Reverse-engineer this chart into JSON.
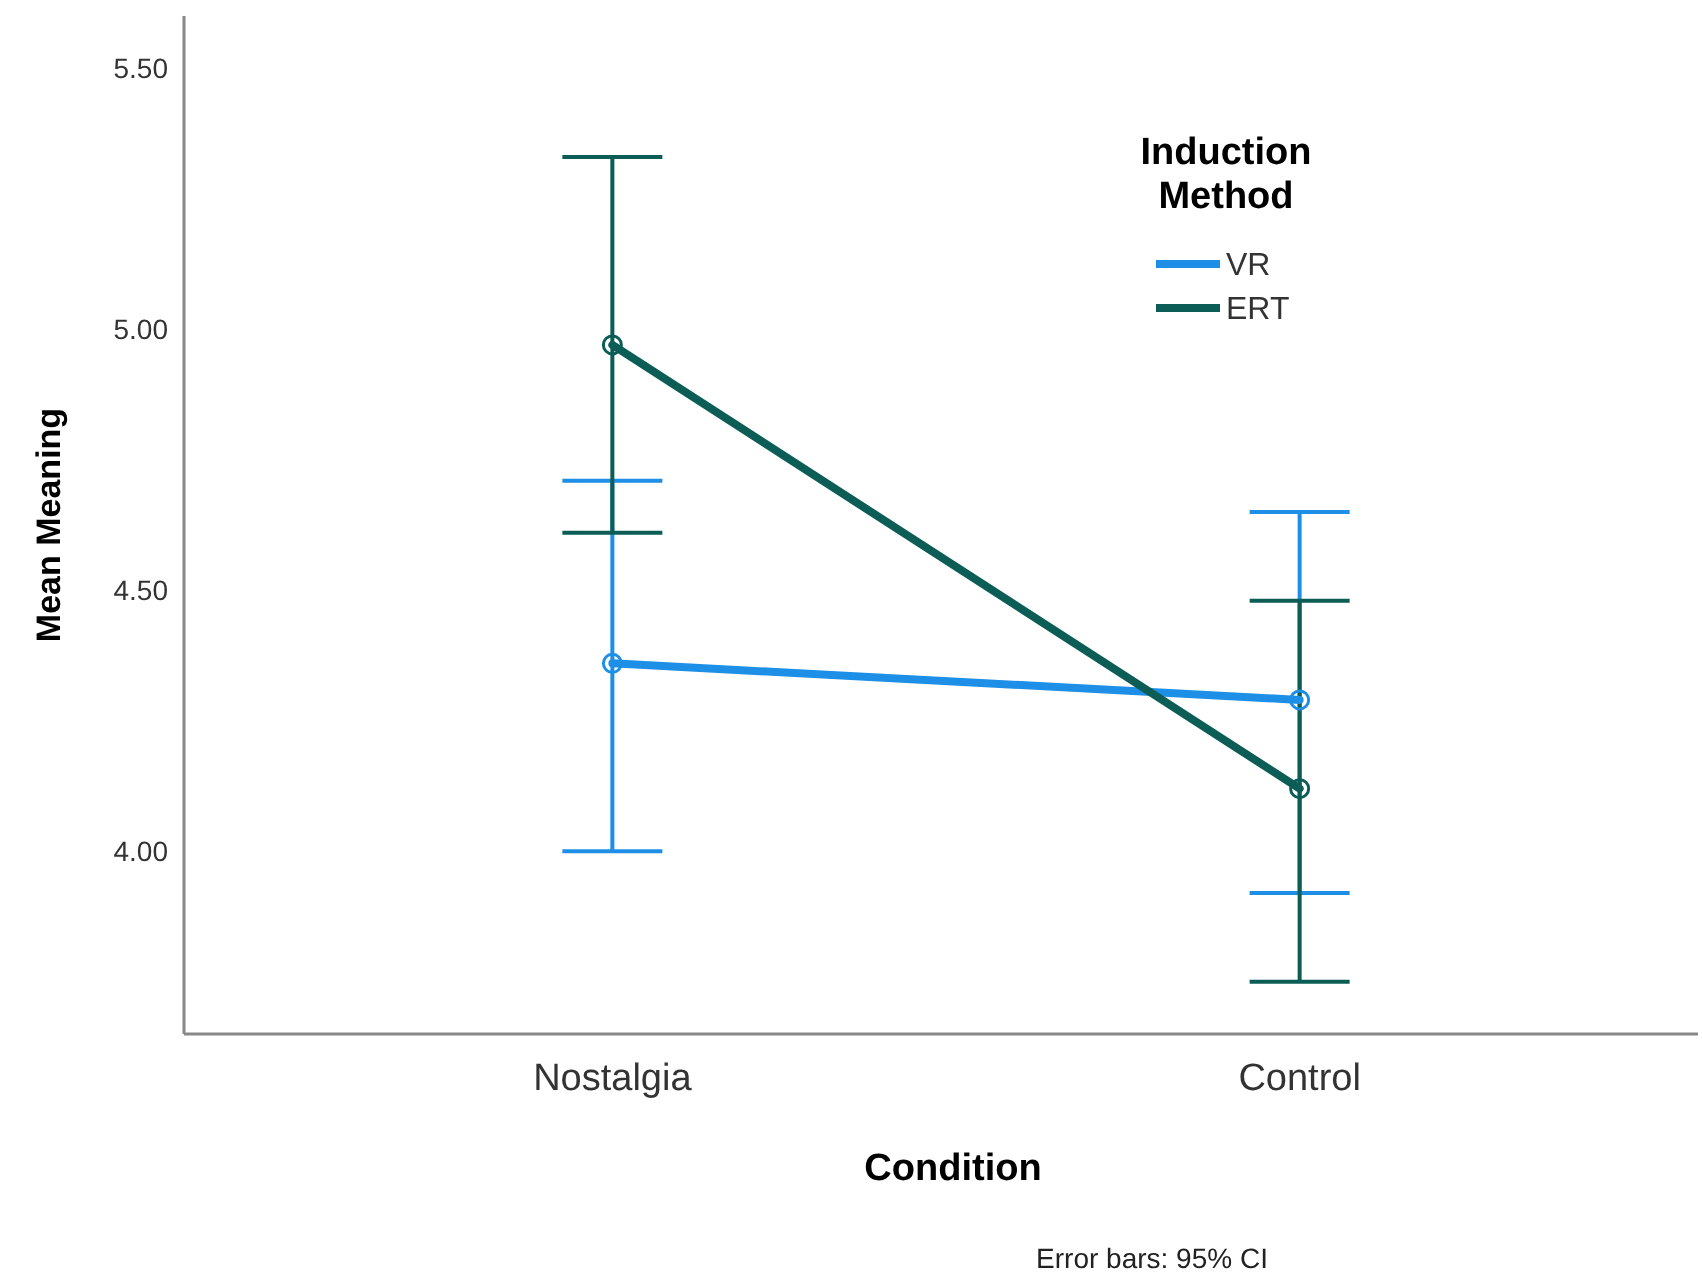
{
  "chart_data": {
    "type": "line",
    "xlabel": "Condition",
    "ylabel": "Mean Meaning",
    "categories": [
      "Nostalgia",
      "Control"
    ],
    "series": [
      {
        "name": "VR",
        "color": "#1e8fe6",
        "values": [
          4.36,
          4.29
        ],
        "errors": [
          [
            4.0,
            4.71
          ],
          [
            3.92,
            4.65
          ]
        ]
      },
      {
        "name": "ERT",
        "color": "#0b5d55",
        "values": [
          4.97,
          4.12
        ],
        "errors": [
          [
            4.61,
            5.33
          ],
          [
            3.75,
            4.48
          ]
        ]
      }
    ],
    "ylim": [
      3.65,
      5.6
    ],
    "yticks": [
      {
        "value": 4.0,
        "label": "4.00"
      },
      {
        "value": 4.5,
        "label": "4.50"
      },
      {
        "value": 5.0,
        "label": "5.00"
      },
      {
        "value": 5.5,
        "label": "5.50"
      }
    ],
    "legend": "top right",
    "legend_title": "Induction Method",
    "marker": "circle",
    "annotations": [
      "Error bars: 95% CI"
    ]
  }
}
